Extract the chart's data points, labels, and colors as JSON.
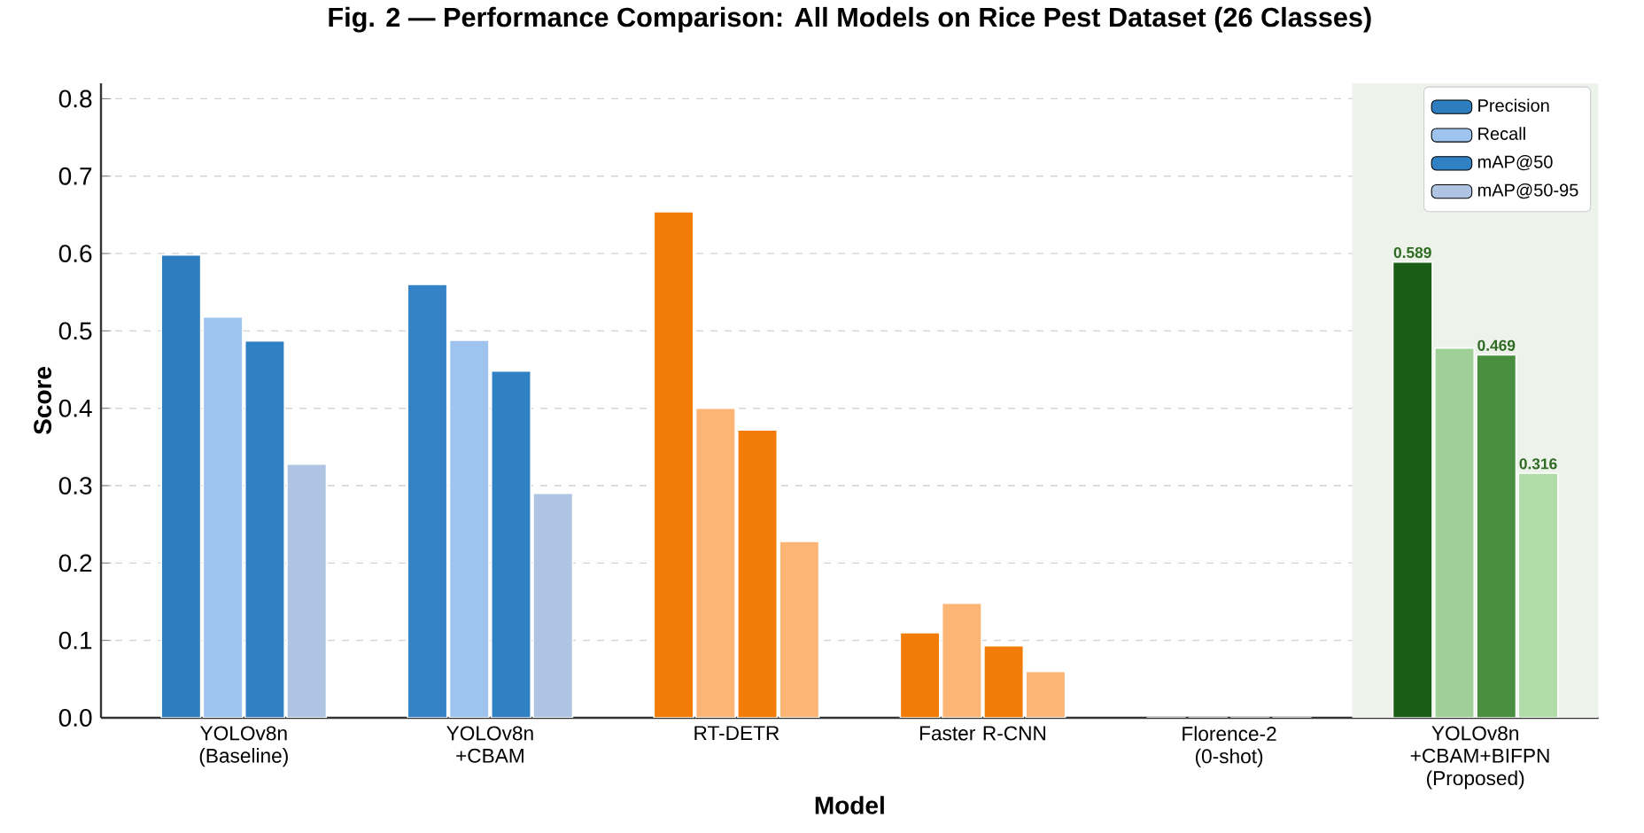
{
  "chart_data": {
    "type": "bar",
    "title": "Fig. 2 — Performance Comparison: All Models on Rice Pest Dataset (26 Classes)",
    "xlabel": "Model",
    "ylabel": "Score",
    "categories": [
      "YOLOv8n (Baseline)",
      "YOLOv8n +CBAM",
      "RT-DETR",
      "Faster R-CNN",
      "Florence-2 (0-shot)",
      "YOLOv8n +CBAM+BIFPN (Proposed)"
    ],
    "series": [
      {
        "name": "Precision",
        "color": "#2e7ebf",
        "values": [
          0.598,
          0.56,
          0.654,
          0.11,
          0,
          0.589
        ],
        "colors": [
          "#2e7ebf",
          "#3383c6",
          "#f27c07",
          "#f27c07",
          "#f27c07",
          "#1a5e16"
        ],
        "value_labels": [
          null,
          null,
          null,
          null,
          null,
          "0.589"
        ]
      },
      {
        "name": "Recall",
        "color": "#9dc3ee",
        "values": [
          0.518,
          0.488,
          0.4,
          0.148,
          0,
          0.478
        ],
        "colors": [
          "#9dc3ee",
          "#9dc3ee",
          "#fdb576",
          "#fdb576",
          "#fdb576",
          "#a0d098"
        ]
      },
      {
        "name": "mAP@50",
        "color": "#3080c4",
        "values": [
          0.487,
          0.448,
          0.372,
          0.093,
          0,
          0.469
        ],
        "colors": [
          "#3080c4",
          "#3080c4",
          "#f27c07",
          "#f27c07",
          "#f27c07",
          "#4a8f40"
        ],
        "value_labels": [
          null,
          null,
          null,
          null,
          null,
          "0.469"
        ]
      },
      {
        "name": "mAP@50-95",
        "color": "#aec4e2",
        "values": [
          0.328,
          0.29,
          0.228,
          0.06,
          0,
          0.316
        ],
        "colors": [
          "#aec4e2",
          "#aec4e2",
          "#fdb576",
          "#fdb576",
          "#fdb576",
          "#b0dca8"
        ],
        "value_labels": [
          null,
          null,
          null,
          null,
          null,
          "0.316"
        ]
      }
    ],
    "ylim": [
      0,
      0.82
    ],
    "yticks": [
      {
        "value": 0,
        "label": "0.0"
      },
      0.1,
      0.2,
      0.3,
      0.4,
      0.5,
      0.6,
      0.7,
      0.8
    ],
    "bands": [
      {
        "axis": "x",
        "from": "YOLOv8n +CBAM+BIFPN (Proposed)",
        "to": "YOLOv8n +CBAM+BIFPN (Proposed)",
        "color": "#edf3ea"
      }
    ],
    "grid": "y",
    "legend": "top right"
  }
}
